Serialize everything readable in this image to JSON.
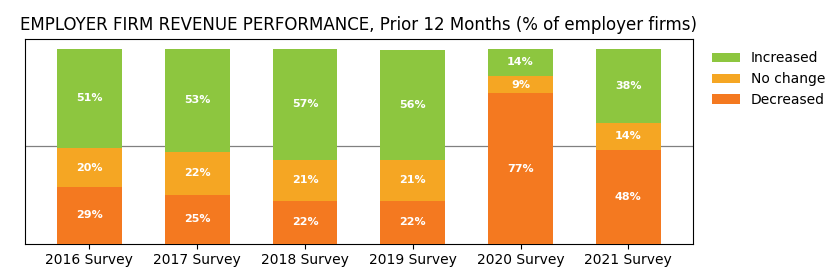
{
  "chart_data": {
    "type": "bar",
    "title": "EMPLOYER FIRM REVENUE PERFORMANCE, Prior 12 Months (% of employer firms)",
    "categories": [
      "2016 Survey",
      "2017 Survey",
      "2018 Survey",
      "2019 Survey",
      "2020 Survey",
      "2021 Survey"
    ],
    "series": [
      {
        "name": "Increased",
        "color": "#8dc63f",
        "values": [
          51,
          53,
          57,
          56,
          14,
          38
        ],
        "value_labels": [
          "51%",
          "53%",
          "57%",
          "56%",
          "14%",
          "38%"
        ]
      },
      {
        "name": "No change",
        "color": "#f5a623",
        "values": [
          20,
          22,
          21,
          21,
          9,
          14
        ],
        "value_labels": [
          "20%",
          "22%",
          "21%",
          "21%",
          "9%",
          "14%"
        ]
      },
      {
        "name": "Decreased",
        "color": "#f47920",
        "values": [
          29,
          25,
          22,
          22,
          77,
          48
        ],
        "value_labels": [
          "29%",
          "25%",
          "22%",
          "22%",
          "77%",
          "48%"
        ]
      }
    ],
    "stacked": true,
    "data_labels": true,
    "ylim": [
      0,
      105
    ],
    "tick_labels": "x",
    "legend": "upper left",
    "reference_line": 50
  }
}
